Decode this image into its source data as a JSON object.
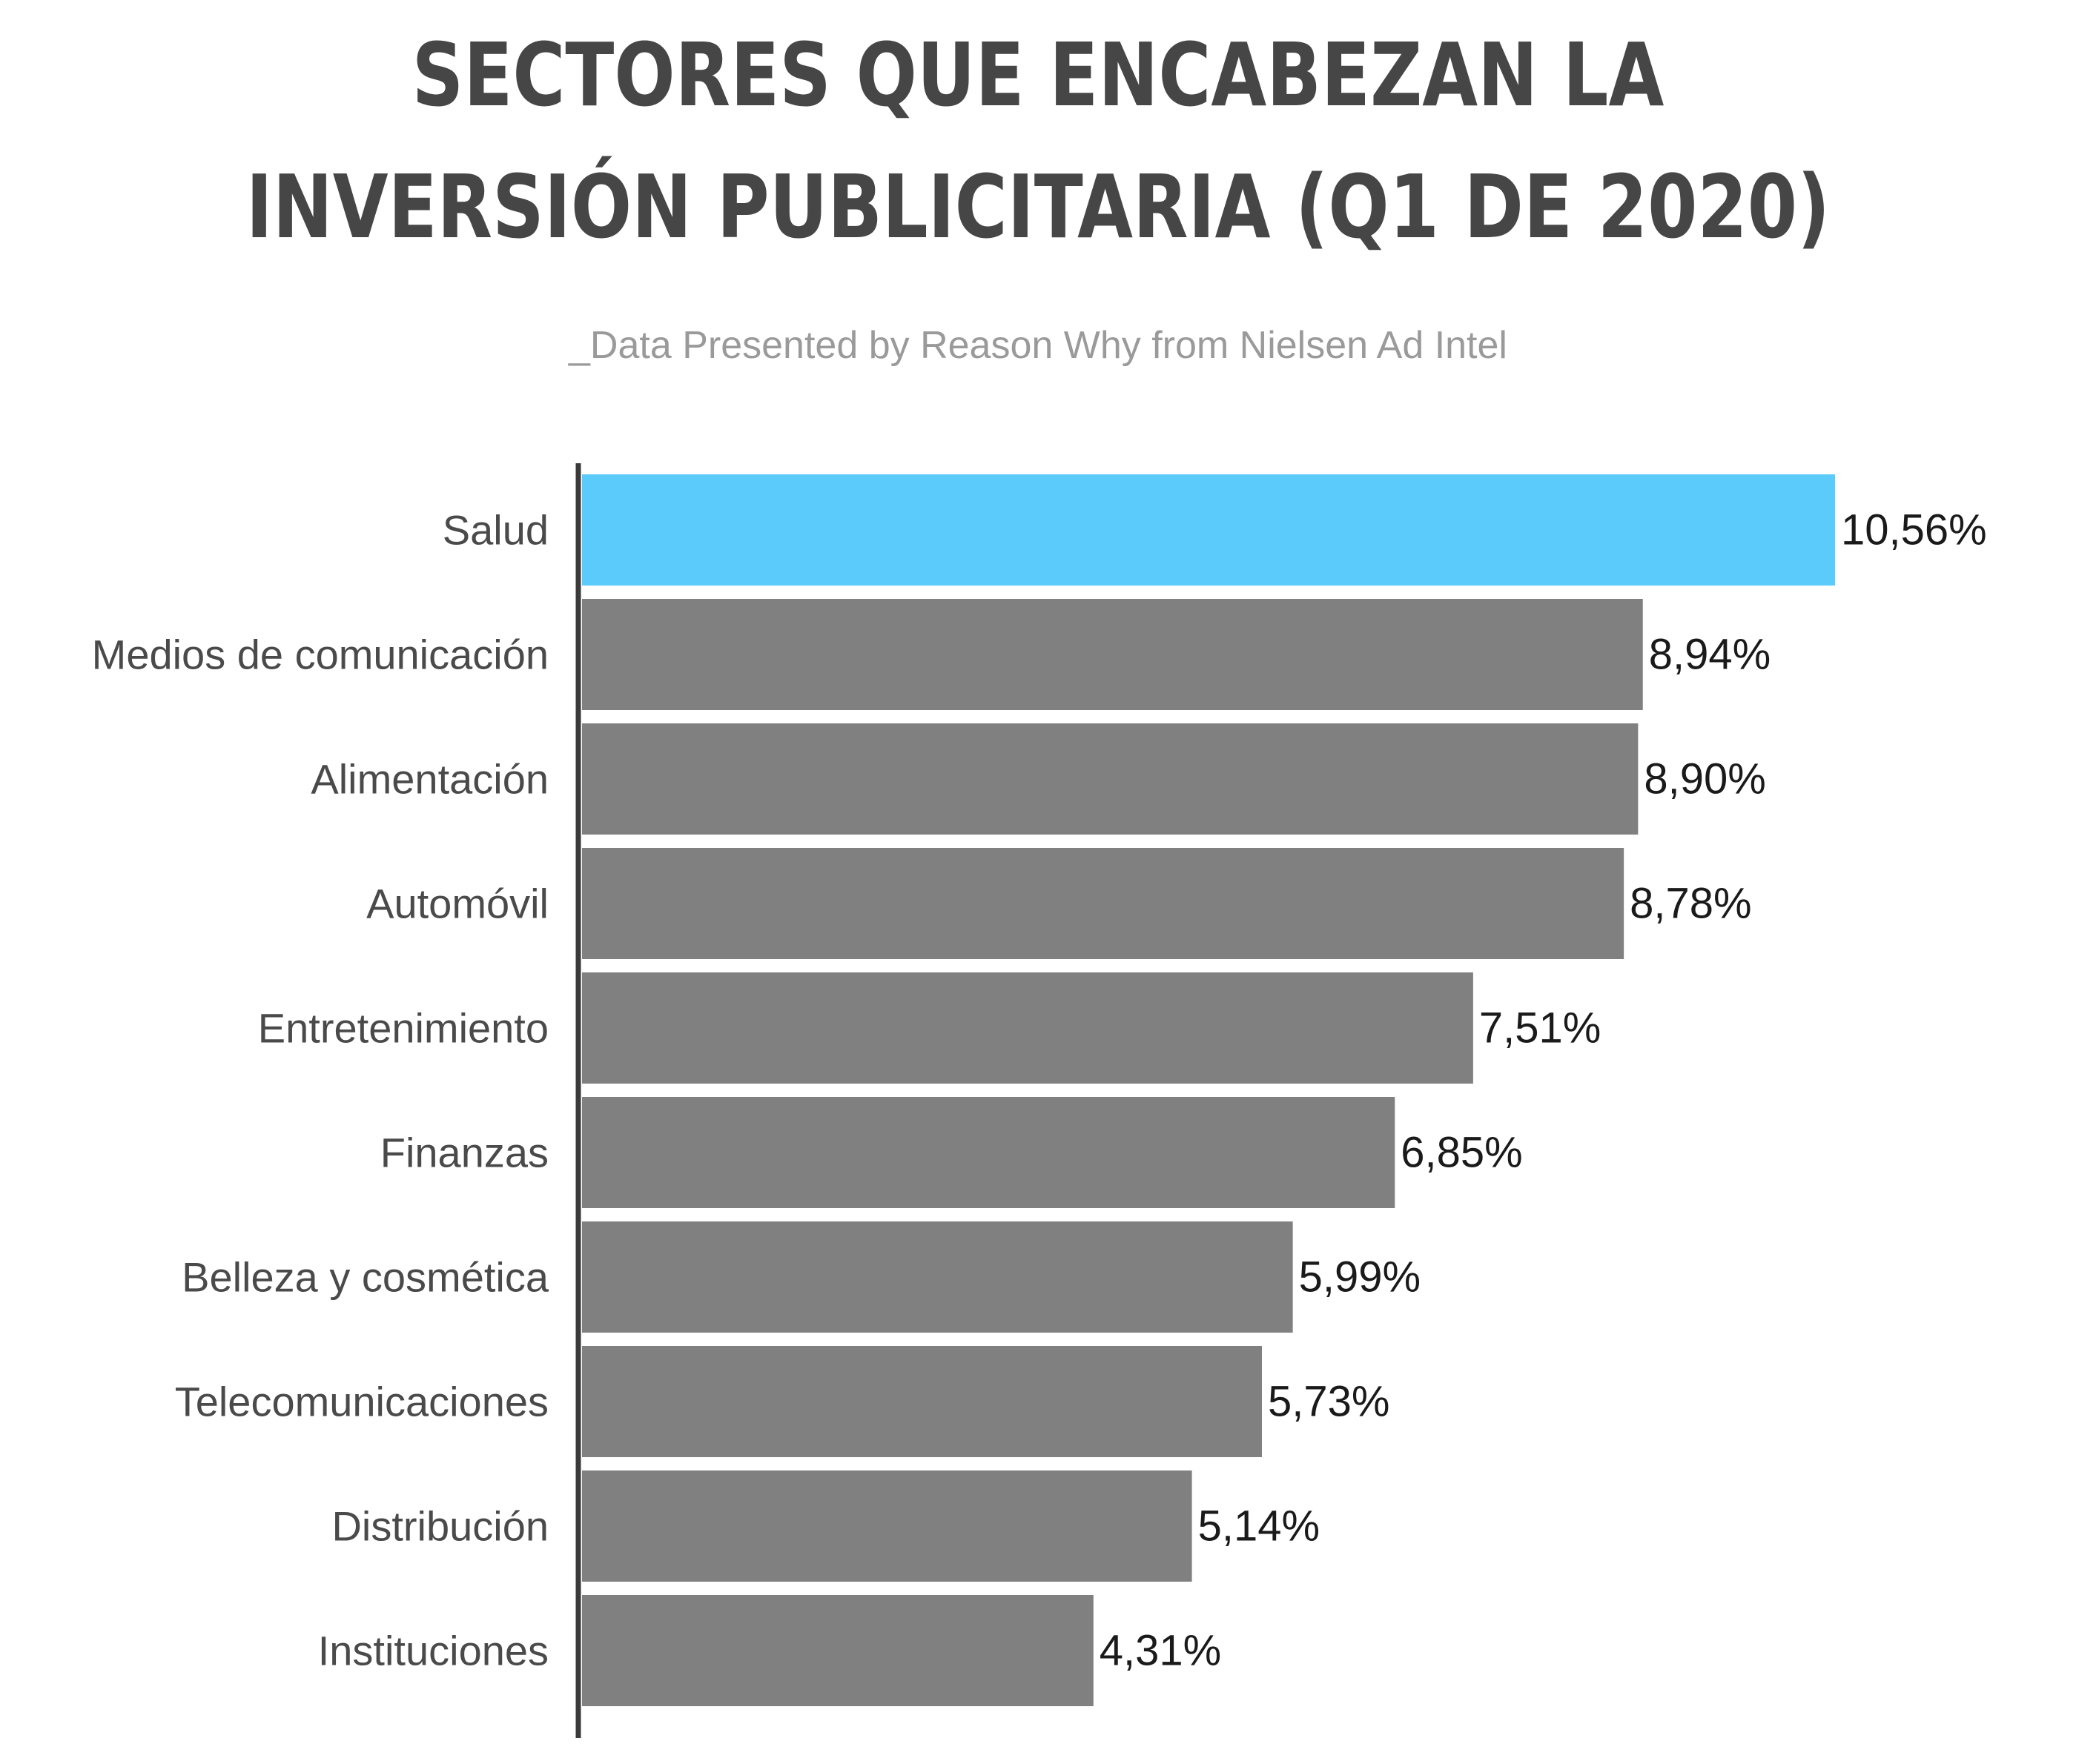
{
  "chart_data": {
    "type": "bar",
    "orientation": "horizontal",
    "title": "SECTORES QUE ENCABEZAN LA INVERSIÓN PUBLICITARIA (Q1 DE 2020)",
    "title_lines": [
      "SECTORES QUE ENCABEZAN LA",
      "INVERSIÓN PUBLICITARIA (Q1 DE 2020)"
    ],
    "subtitle": "_Data Presented by Reason Why from Nielsen Ad Intel",
    "categories": [
      "Salud",
      "Medios de comunicación",
      "Alimentación",
      "Automóvil",
      "Entretenimiento",
      "Finanzas",
      "Belleza y cosmética",
      "Telecomunicaciones",
      "Distribución",
      "Instituciones"
    ],
    "values": [
      10.56,
      8.94,
      8.9,
      8.78,
      7.51,
      6.85,
      5.99,
      5.73,
      5.14,
      4.31
    ],
    "value_labels": [
      "10,56%",
      "8,94%",
      "8,90%",
      "8,78%",
      "7,51%",
      "6,85%",
      "5,99%",
      "5,73%",
      "5,14%",
      "4,31%"
    ],
    "unit": "%",
    "xlim": [
      0,
      10.56
    ],
    "xlabel": "",
    "ylabel": "",
    "grid": false,
    "legend": "none",
    "colors": {
      "highlight": "#5bcbfb",
      "default": "#808080",
      "axis": "#3a3a3a",
      "title": "#464646",
      "subtitle": "#9a9a9a"
    },
    "highlight_index": 0
  }
}
